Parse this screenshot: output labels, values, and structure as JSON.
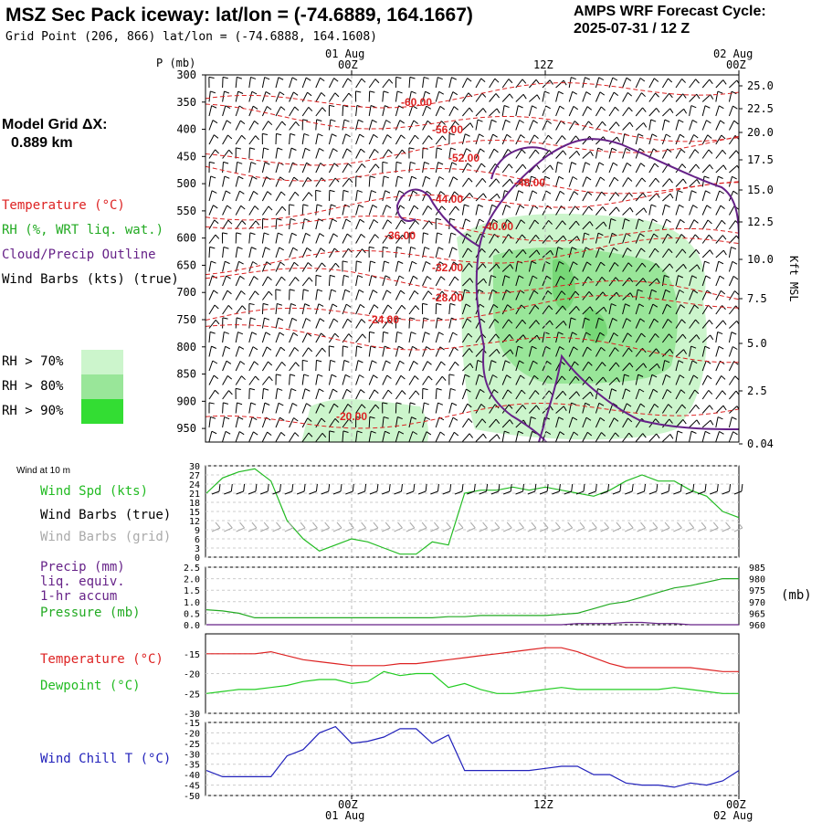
{
  "header": {
    "title": "MSZ Sec Pack iceway:  lat/lon = (-74.6889, 164.1667)",
    "subtitle": "Grid Point (206, 866) lat/lon = (-74.6888, 164.1608)",
    "cycle_line1": "AMPS WRF Forecast Cycle:",
    "cycle_line2": "2025-07-31 / 12  Z"
  },
  "left_panel": {
    "model_grid_label": "Model Grid ΔX:",
    "model_grid_value": "0.889 km",
    "legend_temperature": "Temperature (°C)",
    "legend_rh": "RH (%, WRT liq. wat.)",
    "legend_cloud": "Cloud/Precip Outline",
    "legend_wind": "Wind Barbs (kts) (true)",
    "rh70": "RH > 70%",
    "rh80": "RH > 80%",
    "rh90": "RH > 90%"
  },
  "time_axis": {
    "top_dates": [
      "01 Aug",
      "02 Aug"
    ],
    "top_hours": [
      "00Z",
      "12Z",
      "00Z"
    ],
    "bottom_hours": [
      "00Z",
      "12Z",
      "00Z"
    ],
    "bottom_dates": [
      "01 Aug",
      "02 Aug"
    ]
  },
  "colors": {
    "temperature": "#dd2222",
    "rh70": "#ccf5cc",
    "rh80": "#99e699",
    "rh90": "#33dd33",
    "cloud": "#662288",
    "wind_spd": "#22bb22",
    "wind_grid": "#aaaaaa",
    "precip": "#662288",
    "pressure": "#22aa22",
    "temp_line": "#dd2222",
    "dewpoint": "#22cc22",
    "windchill": "#2222bb"
  },
  "chart_data": [
    {
      "type": "heatmap",
      "title": "",
      "ylabel": "P (mb)",
      "ylabel_right": "Kft MSL",
      "ylim": [
        300,
        975
      ],
      "p_ticks": [
        "300",
        "350",
        "400",
        "450",
        "500",
        "550",
        "600",
        "650",
        "700",
        "750",
        "800",
        "850",
        "900",
        "950"
      ],
      "kft_ticks": [
        "25.0",
        "22.5",
        "20.0",
        "17.5",
        "15.0",
        "12.5",
        "10.0",
        "7.5",
        "5.0",
        "2.5",
        "0.04"
      ],
      "temperature_labels": [
        "-60.00",
        "-56.00",
        "-52.00",
        "-48.00",
        "-44.00",
        "-40.00",
        "-36.00",
        "-32.00",
        "-28.00",
        "-24.00",
        "-20.00"
      ],
      "x": [
        "2025-07-31T15Z",
        "2025-08-01T00Z",
        "2025-08-01T12Z",
        "2025-08-02T00Z"
      ]
    },
    {
      "type": "line",
      "panel_label": "Wind at 10 m",
      "series_labels": [
        "Wind Spd (kts)",
        "Wind Barbs (true)",
        "Wind Barbs (grid)"
      ],
      "yticks": [
        "30",
        "27",
        "24",
        "21",
        "18",
        "15",
        "12",
        "9",
        "6",
        "3",
        "0"
      ],
      "ylim": [
        0,
        30
      ],
      "x_hours": [
        -9,
        -8,
        -7,
        -6,
        -5,
        -4,
        -3,
        -2,
        -1,
        0,
        1,
        2,
        3,
        4,
        5,
        6,
        7,
        8,
        9,
        10,
        11,
        12,
        13,
        14,
        15,
        16,
        17,
        18,
        19,
        20,
        21,
        22,
        23,
        24
      ],
      "wind_spd": [
        21,
        26,
        28,
        29,
        25,
        12,
        6,
        2,
        4,
        6,
        5,
        3,
        1,
        1,
        5,
        4,
        21,
        22,
        22,
        23,
        22,
        23,
        22,
        21,
        20,
        22,
        25,
        27,
        25,
        25,
        22,
        20,
        15,
        13
      ]
    },
    {
      "type": "line",
      "series_labels": [
        "Precip (mm)",
        "liq. equiv.",
        "1-hr accum",
        "Pressure (mb)"
      ],
      "yticks_left": [
        "2.5",
        "2.0",
        "1.5",
        "1.0",
        "0.5",
        "0.0"
      ],
      "yticks_right": [
        "985",
        "980",
        "975",
        "970",
        "965",
        "960"
      ],
      "units_right": "(mb)",
      "x_hours": [
        -9,
        -8,
        -7,
        -6,
        -5,
        -4,
        -3,
        -2,
        -1,
        0,
        1,
        2,
        3,
        4,
        5,
        6,
        7,
        8,
        9,
        10,
        11,
        12,
        13,
        14,
        15,
        16,
        17,
        18,
        19,
        20,
        21,
        22,
        23,
        24
      ],
      "pressure": [
        966.5,
        966,
        965,
        963,
        963,
        963,
        963,
        963,
        963,
        963,
        963,
        963,
        963,
        963,
        963,
        963.5,
        963.5,
        964,
        964,
        964,
        964,
        964,
        964.5,
        965,
        967,
        969,
        970,
        972,
        974,
        976,
        977,
        978.5,
        980,
        980
      ],
      "precip": [
        0,
        0,
        0,
        0,
        0,
        0,
        0,
        0,
        0,
        0,
        0,
        0,
        0,
        0,
        0,
        0,
        0,
        0,
        0,
        0,
        0,
        0,
        0,
        0.05,
        0.05,
        0.05,
        0.1,
        0.1,
        0.05,
        0.05,
        0,
        0,
        0,
        0
      ]
    },
    {
      "type": "line",
      "series_labels": [
        "Temperature (°C)",
        "Dewpoint (°C)"
      ],
      "yticks": [
        "-15",
        "-20",
        "-25",
        "-30"
      ],
      "ylim": [
        -30,
        -10
      ],
      "x_hours": [
        -9,
        -8,
        -7,
        -6,
        -5,
        -4,
        -3,
        -2,
        -1,
        0,
        1,
        2,
        3,
        4,
        5,
        6,
        7,
        8,
        9,
        10,
        11,
        12,
        13,
        14,
        15,
        16,
        17,
        18,
        19,
        20,
        21,
        22,
        23,
        24
      ],
      "temperature": [
        -15,
        -15,
        -15,
        -15,
        -14.5,
        -15.5,
        -16.5,
        -17,
        -17.5,
        -18,
        -18,
        -18,
        -17.5,
        -17.5,
        -17,
        -16.5,
        -16,
        -15.5,
        -15,
        -14.5,
        -14,
        -13.5,
        -13.5,
        -14.5,
        -16,
        -17.5,
        -18.5,
        -18.5,
        -18.5,
        -18.5,
        -18.5,
        -19,
        -19.5,
        -19.5
      ],
      "dewpoint": [
        -25,
        -24.5,
        -24,
        -24,
        -23.5,
        -23,
        -22,
        -21.5,
        -21.5,
        -22.5,
        -22,
        -19.5,
        -20.5,
        -20,
        -20,
        -23.5,
        -22.5,
        -24,
        -25,
        -25,
        -24.5,
        -24,
        -23.5,
        -24,
        -24,
        -24,
        -24,
        -24,
        -24,
        -23.5,
        -24,
        -24.5,
        -25,
        -25
      ]
    },
    {
      "type": "line",
      "series_labels": [
        "Wind Chill T (°C)"
      ],
      "yticks": [
        "-15",
        "-20",
        "-25",
        "-30",
        "-35",
        "-40",
        "-45",
        "-50"
      ],
      "ylim": [
        -50,
        -15
      ],
      "x_hours": [
        -9,
        -8,
        -7,
        -6,
        -5,
        -4,
        -3,
        -2,
        -1,
        0,
        1,
        2,
        3,
        4,
        5,
        6,
        7,
        8,
        9,
        10,
        11,
        12,
        13,
        14,
        15,
        16,
        17,
        18,
        19,
        20,
        21,
        22,
        23,
        24
      ],
      "windchill": [
        -38,
        -41,
        -41,
        -41,
        -41,
        -31,
        -28,
        -20,
        -17,
        -25,
        -24,
        -22,
        -18,
        -18,
        -25,
        -21,
        -38,
        -38,
        -38,
        -38,
        -38,
        -37,
        -36,
        -36,
        -40,
        -40,
        -44,
        -45,
        -45,
        -46,
        -44,
        -45,
        -43,
        -38
      ]
    }
  ]
}
